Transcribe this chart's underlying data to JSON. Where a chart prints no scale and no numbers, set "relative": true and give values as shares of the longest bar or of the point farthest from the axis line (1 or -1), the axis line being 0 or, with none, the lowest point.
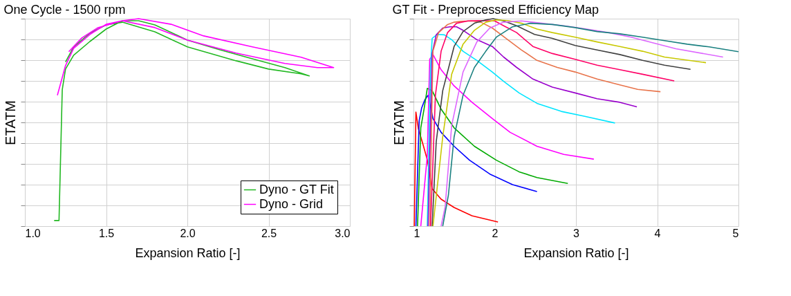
{
  "chart_data": [
    {
      "type": "line",
      "title": "One Cycle - 1500 rpm",
      "xlabel": "Expansion Ratio [-]",
      "ylabel": "ETATM",
      "relative": true,
      "grid": true,
      "legend": "bottom right",
      "xlim": [
        1,
        3
      ],
      "xticks": [
        {
          "value": 1,
          "label": "1.0"
        },
        {
          "value": 1.5,
          "label": "1.5"
        },
        {
          "value": 2,
          "label": "2.0"
        },
        {
          "value": 2.5,
          "label": "2.5"
        },
        {
          "value": 3,
          "label": "3.0"
        }
      ],
      "series": [
        {
          "name": "Dyno - GT Fit",
          "color": "#22b822",
          "x": [
            1.18,
            1.21,
            1.23,
            1.25,
            1.3,
            1.4,
            1.5,
            1.6,
            1.7,
            1.8,
            2.0,
            2.2,
            2.4,
            2.6,
            2.75,
            2.7,
            2.5,
            2.3,
            2.0,
            1.8,
            1.6,
            1.5,
            1.4,
            1.3,
            1.25
          ],
          "values": [
            0.027,
            0.027,
            0.658,
            0.757,
            0.824,
            0.89,
            0.95,
            0.99,
            0.99,
            0.97,
            0.897,
            0.85,
            0.807,
            0.764,
            0.724,
            0.734,
            0.757,
            0.797,
            0.864,
            0.937,
            0.983,
            0.97,
            0.93,
            0.864,
            0.791
          ]
        },
        {
          "name": "Dyno - Grid",
          "color": "#ff00ff",
          "x": [
            1.2,
            1.25,
            1.3,
            1.4,
            1.5,
            1.6,
            1.7,
            1.9,
            2.1,
            2.4,
            2.7,
            2.9,
            2.8,
            2.6,
            2.3,
            2.0,
            1.8,
            1.6,
            1.45,
            1.35,
            1.27
          ],
          "values": [
            0.631,
            0.774,
            0.857,
            0.924,
            0.973,
            0.99,
            1.0,
            0.973,
            0.917,
            0.864,
            0.814,
            0.764,
            0.764,
            0.784,
            0.834,
            0.897,
            0.957,
            0.99,
            0.957,
            0.907,
            0.841
          ]
        }
      ]
    },
    {
      "type": "line",
      "title": "GT Fit - Preprocessed Efficiency Map",
      "xlabel": "Expansion Ratio [-]",
      "ylabel": "ETATM",
      "relative": true,
      "grid": true,
      "xlim": [
        1,
        5
      ],
      "xticks": [
        1,
        2,
        3,
        4,
        5
      ],
      "series": [
        {
          "color": "#ff0000",
          "x": [
            1.01,
            1.03,
            1.06,
            1.12,
            1.17,
            1.23,
            1.34,
            1.5,
            1.72,
            2.04
          ],
          "values": [
            0,
            0.55,
            0.47,
            0.39,
            0.32,
            0.18,
            0.13,
            0.09,
            0.05,
            0.02
          ]
        },
        {
          "color": "#0000ff",
          "x": [
            1.03,
            1.07,
            1.1,
            1.14,
            1.18,
            1.21,
            1.24,
            1.34,
            1.5,
            1.69,
            1.94,
            2.22,
            2.52
          ],
          "values": [
            0,
            0.508,
            0.569,
            0.609,
            0.631,
            0.575,
            0.519,
            0.452,
            0.385,
            0.318,
            0.251,
            0.2,
            0.167
          ]
        },
        {
          "color": "#00aa00",
          "x": [
            1.05,
            1.09,
            1.13,
            1.17,
            1.23,
            1.34,
            1.5,
            1.75,
            2.02,
            2.3,
            2.52,
            2.9
          ],
          "values": [
            0,
            0.474,
            0.564,
            0.664,
            0.653,
            0.564,
            0.474,
            0.385,
            0.318,
            0.262,
            0.234,
            0.206
          ]
        },
        {
          "color": "#ff00ff",
          "x": [
            1.09,
            1.17,
            1.2,
            1.24,
            1.34,
            1.5,
            1.72,
            1.97,
            2.19,
            2.52,
            2.85,
            3.22
          ],
          "values": [
            0,
            0.34,
            0.804,
            0.827,
            0.754,
            0.676,
            0.597,
            0.519,
            0.452,
            0.385,
            0.346,
            0.323
          ]
        },
        {
          "color": "#00e5ff",
          "x": [
            1.17,
            1.21,
            1.23,
            1.29,
            1.38,
            1.47,
            1.61,
            1.78,
            1.97,
            2.11,
            2.3,
            2.52,
            2.82,
            3.1,
            3.48
          ],
          "values": [
            0,
            0.765,
            0.905,
            0.924,
            0.922,
            0.899,
            0.843,
            0.799,
            0.743,
            0.698,
            0.642,
            0.592,
            0.553,
            0.53,
            0.497
          ]
        },
        {
          "color": "#9900cc",
          "x": [
            1.18,
            1.23,
            1.28,
            1.36,
            1.45,
            1.53,
            1.61,
            1.78,
            1.97,
            2.11,
            2.27,
            2.47,
            2.71,
            2.99,
            3.26,
            3.54,
            3.75
          ],
          "values": [
            0,
            0.832,
            0.922,
            0.955,
            0.961,
            0.961,
            0.944,
            0.899,
            0.866,
            0.815,
            0.765,
            0.709,
            0.67,
            0.642,
            0.614,
            0.597,
            0.575
          ]
        },
        {
          "color": "#e8734a",
          "x": [
            1.2,
            1.24,
            1.31,
            1.42,
            1.5,
            1.58,
            1.72,
            1.83,
            1.97,
            2.16,
            2.33,
            2.52,
            2.77,
            2.99,
            3.26,
            3.54,
            3.76,
            4.04
          ],
          "values": [
            0,
            0.844,
            0.933,
            0.972,
            0.983,
            0.987,
            0.989,
            0.983,
            0.955,
            0.899,
            0.849,
            0.799,
            0.765,
            0.743,
            0.709,
            0.681,
            0.659,
            0.648
          ]
        },
        {
          "color": "#ff0066",
          "x": [
            1.21,
            1.27,
            1.34,
            1.42,
            1.53,
            1.67,
            1.8,
            2.0,
            2.11,
            2.27,
            2.47,
            2.71,
            2.99,
            3.26,
            3.54,
            3.82,
            4.21
          ],
          "values": [
            0,
            0.631,
            0.843,
            0.933,
            0.978,
            0.989,
            0.991,
            0.989,
            0.966,
            0.933,
            0.866,
            0.832,
            0.804,
            0.776,
            0.754,
            0.732,
            0.7
          ]
        },
        {
          "color": "#404040",
          "x": [
            1.23,
            1.28,
            1.36,
            1.5,
            1.61,
            1.75,
            1.89,
            1.98,
            2.11,
            2.27,
            2.49,
            2.71,
            2.99,
            3.26,
            3.54,
            3.82,
            4.09,
            4.41
          ],
          "values": [
            0,
            0.407,
            0.653,
            0.866,
            0.938,
            0.978,
            0.994,
            1.0,
            0.989,
            0.966,
            0.924,
            0.905,
            0.871,
            0.849,
            0.827,
            0.799,
            0.776,
            0.756
          ]
        },
        {
          "color": "#c8c800",
          "x": [
            1.24,
            1.36,
            1.47,
            1.61,
            1.75,
            1.89,
            2.02,
            2.16,
            2.33,
            2.52,
            2.71,
            2.99,
            3.26,
            3.54,
            3.82,
            4.09,
            4.6
          ],
          "values": [
            0,
            0.43,
            0.732,
            0.877,
            0.944,
            0.983,
            0.994,
            0.991,
            0.978,
            0.95,
            0.933,
            0.911,
            0.888,
            0.866,
            0.843,
            0.815,
            0.788
          ]
        },
        {
          "color": "#dd66ff",
          "x": [
            1.34,
            1.39,
            1.47,
            1.61,
            1.78,
            1.94,
            2.11,
            2.33,
            2.58,
            2.85,
            3.13,
            3.4,
            3.68,
            3.95,
            4.23,
            4.81
          ],
          "values": [
            0,
            0.094,
            0.485,
            0.743,
            0.888,
            0.955,
            0.983,
            0.989,
            0.978,
            0.966,
            0.95,
            0.933,
            0.911,
            0.883,
            0.855,
            0.815
          ]
        },
        {
          "color": "#1a8080",
          "x": [
            1.36,
            1.43,
            1.5,
            1.61,
            1.75,
            1.89,
            2.02,
            2.22,
            2.44,
            2.71,
            2.99,
            3.26,
            3.54,
            3.82,
            4.09,
            4.37,
            4.64,
            5.0
          ],
          "values": [
            0,
            0.15,
            0.43,
            0.631,
            0.765,
            0.843,
            0.911,
            0.961,
            0.978,
            0.972,
            0.957,
            0.938,
            0.927,
            0.911,
            0.894,
            0.877,
            0.864,
            0.841
          ]
        }
      ]
    }
  ]
}
